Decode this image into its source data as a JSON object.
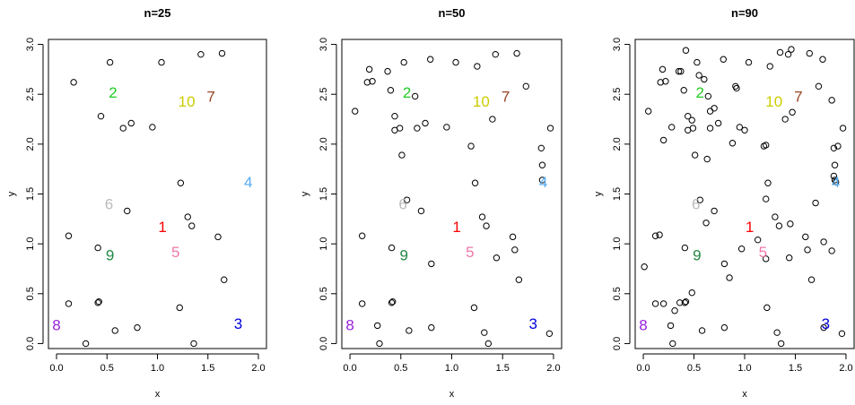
{
  "chart_data": [
    {
      "type": "scatter",
      "title": "n=25",
      "xlabel": "x",
      "ylabel": "y",
      "xlim": [
        -0.08,
        2.08
      ],
      "ylim": [
        -0.05,
        3.05
      ],
      "xticks": [
        "0.0",
        "0.5",
        "1.0",
        "1.5",
        "2.0"
      ],
      "yticks": [
        "0.0",
        "0.5",
        "1.0",
        "1.5",
        "2.0",
        "2.5",
        "3.0"
      ],
      "points": {
        "x": [
          0.17,
          0.53,
          1.04,
          1.43,
          1.64,
          0.44,
          0.74,
          0.66,
          0.95,
          1.23,
          0.7,
          1.3,
          1.34,
          0.12,
          1.6,
          0.41,
          0.41,
          1.66,
          0.12,
          1.22,
          0.58,
          0.8,
          0.29,
          1.36,
          0.42
        ],
        "y": [
          2.62,
          2.82,
          2.82,
          2.9,
          2.91,
          2.28,
          2.21,
          2.16,
          2.17,
          1.61,
          1.33,
          1.27,
          1.18,
          1.08,
          1.07,
          0.96,
          0.41,
          0.64,
          0.4,
          0.36,
          0.13,
          0.16,
          0.0,
          0.0,
          0.42
        ]
      },
      "labels": [
        {
          "text": "1",
          "x": 1.05,
          "y": 1.17,
          "color": "#ff0000"
        },
        {
          "text": "2",
          "x": 0.56,
          "y": 2.52,
          "color": "#22cc22"
        },
        {
          "text": "3",
          "x": 1.8,
          "y": 0.2,
          "color": "#0000dd"
        },
        {
          "text": "4",
          "x": 1.9,
          "y": 1.62,
          "color": "#55aaee"
        },
        {
          "text": "5",
          "x": 1.18,
          "y": 0.92,
          "color": "#ee77aa"
        },
        {
          "text": "6",
          "x": 0.52,
          "y": 1.4,
          "color": "#bbbbbb"
        },
        {
          "text": "7",
          "x": 1.53,
          "y": 2.48,
          "color": "#994422"
        },
        {
          "text": "8",
          "x": 0.0,
          "y": 0.19,
          "color": "#9922dd"
        },
        {
          "text": "9",
          "x": 0.53,
          "y": 0.89,
          "color": "#228844"
        },
        {
          "text": "10",
          "x": 1.29,
          "y": 2.43,
          "color": "#cccc00"
        }
      ]
    },
    {
      "type": "scatter",
      "title": "n=50",
      "xlabel": "x",
      "ylabel": "y",
      "xlim": [
        -0.08,
        2.08
      ],
      "ylim": [
        -0.05,
        3.05
      ],
      "xticks": [
        "0.0",
        "0.5",
        "1.0",
        "1.5",
        "2.0"
      ],
      "yticks": [
        "0.0",
        "0.5",
        "1.0",
        "1.5",
        "2.0",
        "2.5",
        "3.0"
      ],
      "points": {
        "x": [
          0.17,
          0.53,
          1.04,
          1.43,
          1.64,
          0.44,
          0.74,
          0.66,
          0.95,
          1.23,
          0.7,
          1.3,
          1.34,
          0.12,
          1.6,
          0.41,
          0.41,
          1.66,
          0.12,
          1.22,
          0.58,
          0.8,
          0.29,
          1.36,
          0.42,
          0.05,
          0.19,
          0.37,
          0.22,
          0.4,
          0.51,
          0.79,
          0.64,
          1.25,
          1.73,
          1.19,
          1.4,
          0.44,
          0.56,
          1.88,
          1.89,
          1.97,
          0.49,
          1.62,
          0.8,
          1.32,
          1.89,
          1.96,
          1.44,
          0.27
        ],
        "y": [
          2.62,
          2.82,
          2.82,
          2.9,
          2.91,
          2.28,
          2.21,
          2.16,
          2.17,
          1.61,
          1.33,
          1.27,
          1.18,
          1.08,
          1.07,
          0.96,
          0.41,
          0.64,
          0.4,
          0.36,
          0.13,
          0.16,
          0.0,
          0.0,
          0.42,
          2.33,
          2.75,
          2.73,
          2.63,
          2.54,
          1.89,
          2.85,
          2.48,
          2.78,
          2.58,
          1.98,
          2.25,
          2.14,
          1.44,
          1.96,
          1.79,
          2.16,
          2.16,
          0.94,
          0.8,
          0.11,
          1.64,
          0.1,
          0.86,
          0.18
        ]
      },
      "labels": [
        {
          "text": "1",
          "x": 1.05,
          "y": 1.17,
          "color": "#ff0000"
        },
        {
          "text": "2",
          "x": 0.56,
          "y": 2.52,
          "color": "#22cc22"
        },
        {
          "text": "3",
          "x": 1.8,
          "y": 0.2,
          "color": "#0000dd"
        },
        {
          "text": "4",
          "x": 1.9,
          "y": 1.62,
          "color": "#55aaee"
        },
        {
          "text": "5",
          "x": 1.18,
          "y": 0.92,
          "color": "#ee77aa"
        },
        {
          "text": "6",
          "x": 0.52,
          "y": 1.4,
          "color": "#bbbbbb"
        },
        {
          "text": "7",
          "x": 1.53,
          "y": 2.48,
          "color": "#994422"
        },
        {
          "text": "8",
          "x": 0.0,
          "y": 0.19,
          "color": "#9922dd"
        },
        {
          "text": "9",
          "x": 0.53,
          "y": 0.89,
          "color": "#228844"
        },
        {
          "text": "10",
          "x": 1.29,
          "y": 2.43,
          "color": "#cccc00"
        }
      ]
    },
    {
      "type": "scatter",
      "title": "n=90",
      "xlabel": "x",
      "ylabel": "y",
      "xlim": [
        -0.08,
        2.08
      ],
      "ylim": [
        -0.05,
        3.05
      ],
      "xticks": [
        "0.0",
        "0.5",
        "1.0",
        "1.5",
        "2.0"
      ],
      "yticks": [
        "0.0",
        "0.5",
        "1.0",
        "1.5",
        "2.0",
        "2.5",
        "3.0"
      ],
      "points": {
        "x": [
          0.17,
          0.53,
          1.04,
          1.43,
          1.64,
          0.44,
          0.74,
          0.66,
          0.95,
          1.23,
          0.7,
          1.3,
          1.34,
          0.12,
          1.6,
          0.41,
          0.41,
          1.66,
          0.12,
          1.22,
          0.58,
          0.8,
          0.29,
          1.36,
          0.42,
          0.05,
          0.19,
          0.37,
          0.22,
          0.4,
          0.51,
          0.79,
          0.64,
          1.25,
          1.73,
          1.19,
          1.4,
          0.44,
          0.56,
          1.88,
          1.89,
          1.97,
          0.49,
          1.62,
          0.8,
          1.32,
          1.89,
          1.96,
          1.44,
          0.27,
          0.42,
          0.91,
          1.46,
          0.6,
          0.66,
          0.7,
          0.48,
          0.2,
          0.35,
          1.21,
          1.35,
          1.86,
          1.77,
          1.92,
          0.28,
          0.55,
          1.0,
          0.63,
          0.92,
          0.88,
          1.21,
          1.47,
          1.45,
          0.01,
          0.16,
          1.7,
          0.2,
          1.86,
          1.78,
          0.85,
          0.48,
          0.62,
          1.88,
          1.9,
          0.97,
          0.36,
          1.13,
          1.21,
          0.31,
          1.78
        ],
        "y": [
          2.62,
          2.82,
          2.82,
          2.9,
          2.91,
          2.28,
          2.21,
          2.16,
          2.17,
          1.61,
          1.33,
          1.27,
          1.18,
          1.08,
          1.07,
          0.96,
          0.41,
          0.64,
          0.4,
          0.36,
          0.13,
          0.16,
          0.0,
          0.0,
          0.42,
          2.33,
          2.75,
          2.73,
          2.63,
          2.54,
          1.89,
          2.85,
          2.48,
          2.78,
          2.58,
          1.98,
          2.25,
          2.14,
          1.44,
          1.96,
          1.79,
          2.16,
          2.16,
          0.94,
          0.8,
          0.11,
          1.64,
          0.1,
          0.86,
          0.18,
          2.94,
          2.58,
          2.95,
          2.65,
          2.33,
          2.36,
          2.24,
          2.04,
          2.73,
          1.99,
          2.92,
          2.44,
          2.85,
          1.98,
          2.17,
          2.69,
          2.14,
          1.85,
          2.56,
          2.01,
          1.45,
          2.32,
          1.2,
          0.77,
          1.09,
          1.41,
          0.4,
          0.93,
          1.02,
          0.66,
          0.51,
          1.21,
          1.68,
          1.62,
          0.95,
          0.41,
          1.04,
          0.85,
          0.33,
          0.16
        ]
      },
      "labels": [
        {
          "text": "1",
          "x": 1.05,
          "y": 1.17,
          "color": "#ff0000"
        },
        {
          "text": "2",
          "x": 0.56,
          "y": 2.52,
          "color": "#22cc22"
        },
        {
          "text": "3",
          "x": 1.8,
          "y": 0.2,
          "color": "#0000dd"
        },
        {
          "text": "4",
          "x": 1.9,
          "y": 1.62,
          "color": "#55aaee"
        },
        {
          "text": "5",
          "x": 1.18,
          "y": 0.92,
          "color": "#ee77aa"
        },
        {
          "text": "6",
          "x": 0.52,
          "y": 1.4,
          "color": "#bbbbbb"
        },
        {
          "text": "7",
          "x": 1.53,
          "y": 2.48,
          "color": "#994422"
        },
        {
          "text": "8",
          "x": 0.0,
          "y": 0.19,
          "color": "#9922dd"
        },
        {
          "text": "9",
          "x": 0.53,
          "y": 0.89,
          "color": "#228844"
        },
        {
          "text": "10",
          "x": 1.29,
          "y": 2.43,
          "color": "#cccc00"
        }
      ]
    }
  ]
}
